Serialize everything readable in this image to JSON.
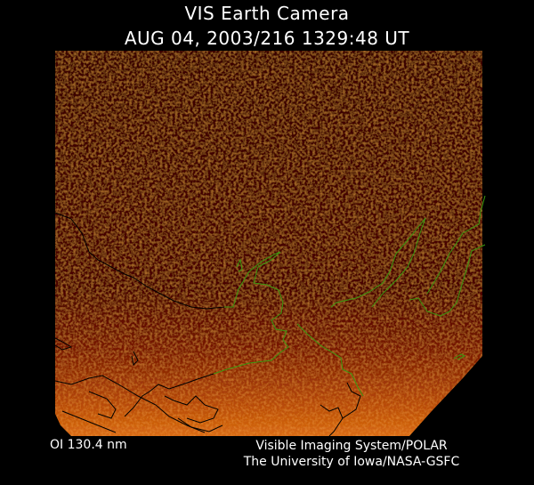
{
  "header": {
    "title": "VIS Earth Camera",
    "timestamp": "AUG 04, 2003/216 1329:48 UT"
  },
  "image": {
    "description_colors": {
      "background": "#3a0000",
      "aurora_glow": "#d06010",
      "coastline_night": "#000000",
      "coastline_day": "#3a9a10"
    }
  },
  "footer": {
    "band": "OI  130.4 nm",
    "credit_line1": "Visible Imaging System/POLAR",
    "credit_line2": "The University of Iowa/NASA-GSFC"
  }
}
